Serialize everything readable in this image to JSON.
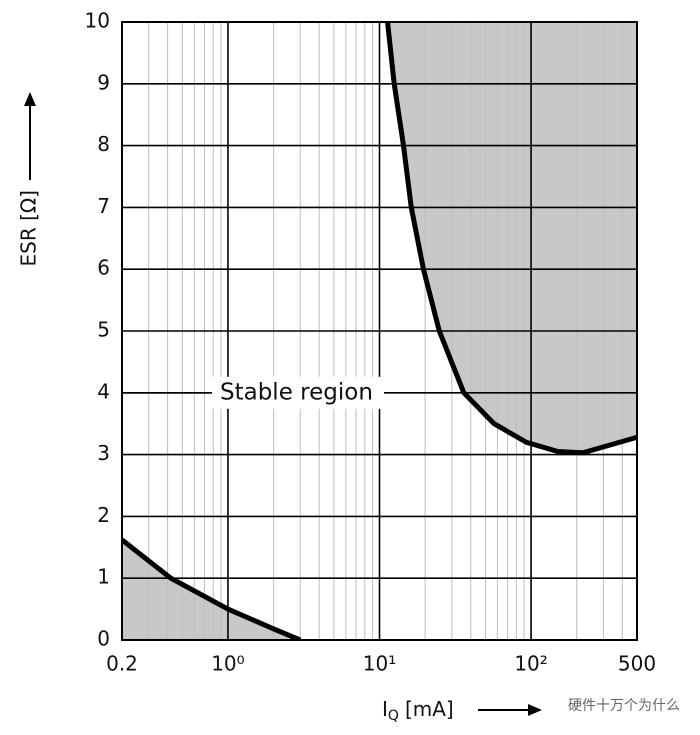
{
  "chart_data": {
    "type": "line",
    "ylabel": "ESR [Ω]",
    "xlabel": {
      "main": "I",
      "sub": "Q",
      "unit": "[mA]"
    },
    "annotation": {
      "text": "Stable region",
      "y": 4
    },
    "watermark": "硬件十万个为什么",
    "log_x": true,
    "grid": true,
    "xlim": [
      0.2,
      500
    ],
    "ylim": [
      0,
      10
    ],
    "xticks": [
      0.2,
      {
        "value": 1,
        "label": "10⁰"
      },
      {
        "value": 10,
        "label": "10¹"
      },
      {
        "value": 100,
        "label": "10²"
      },
      500
    ],
    "x_minor_ticks": [
      0.3,
      0.4,
      0.5,
      0.6,
      0.7,
      0.8,
      0.9,
      2,
      3,
      4,
      5,
      6,
      7,
      8,
      9,
      20,
      30,
      40,
      50,
      60,
      70,
      80,
      90,
      200,
      300,
      400
    ],
    "yticks": [
      0,
      1,
      2,
      3,
      4,
      5,
      6,
      7,
      8,
      9,
      10
    ],
    "series": [
      {
        "color": "#000000",
        "fill": "#c8c8c8",
        "fill_to": "top",
        "x": [
          11.3,
          12.5,
          14.4,
          16.2,
          19.5,
          24.8,
          36,
          57,
          93,
          150,
          220,
          500
        ],
        "values": [
          10,
          9,
          8,
          7,
          6,
          5,
          4,
          3.5,
          3.2,
          3.05,
          3.03,
          3.28
        ]
      },
      {
        "color": "#000000",
        "fill": "#c8c8c8",
        "fill_to": "bottom",
        "x": [
          0.2,
          0.42,
          1,
          2,
          3
        ],
        "values": [
          1.62,
          1.0,
          0.5,
          0.18,
          0
        ]
      }
    ]
  }
}
